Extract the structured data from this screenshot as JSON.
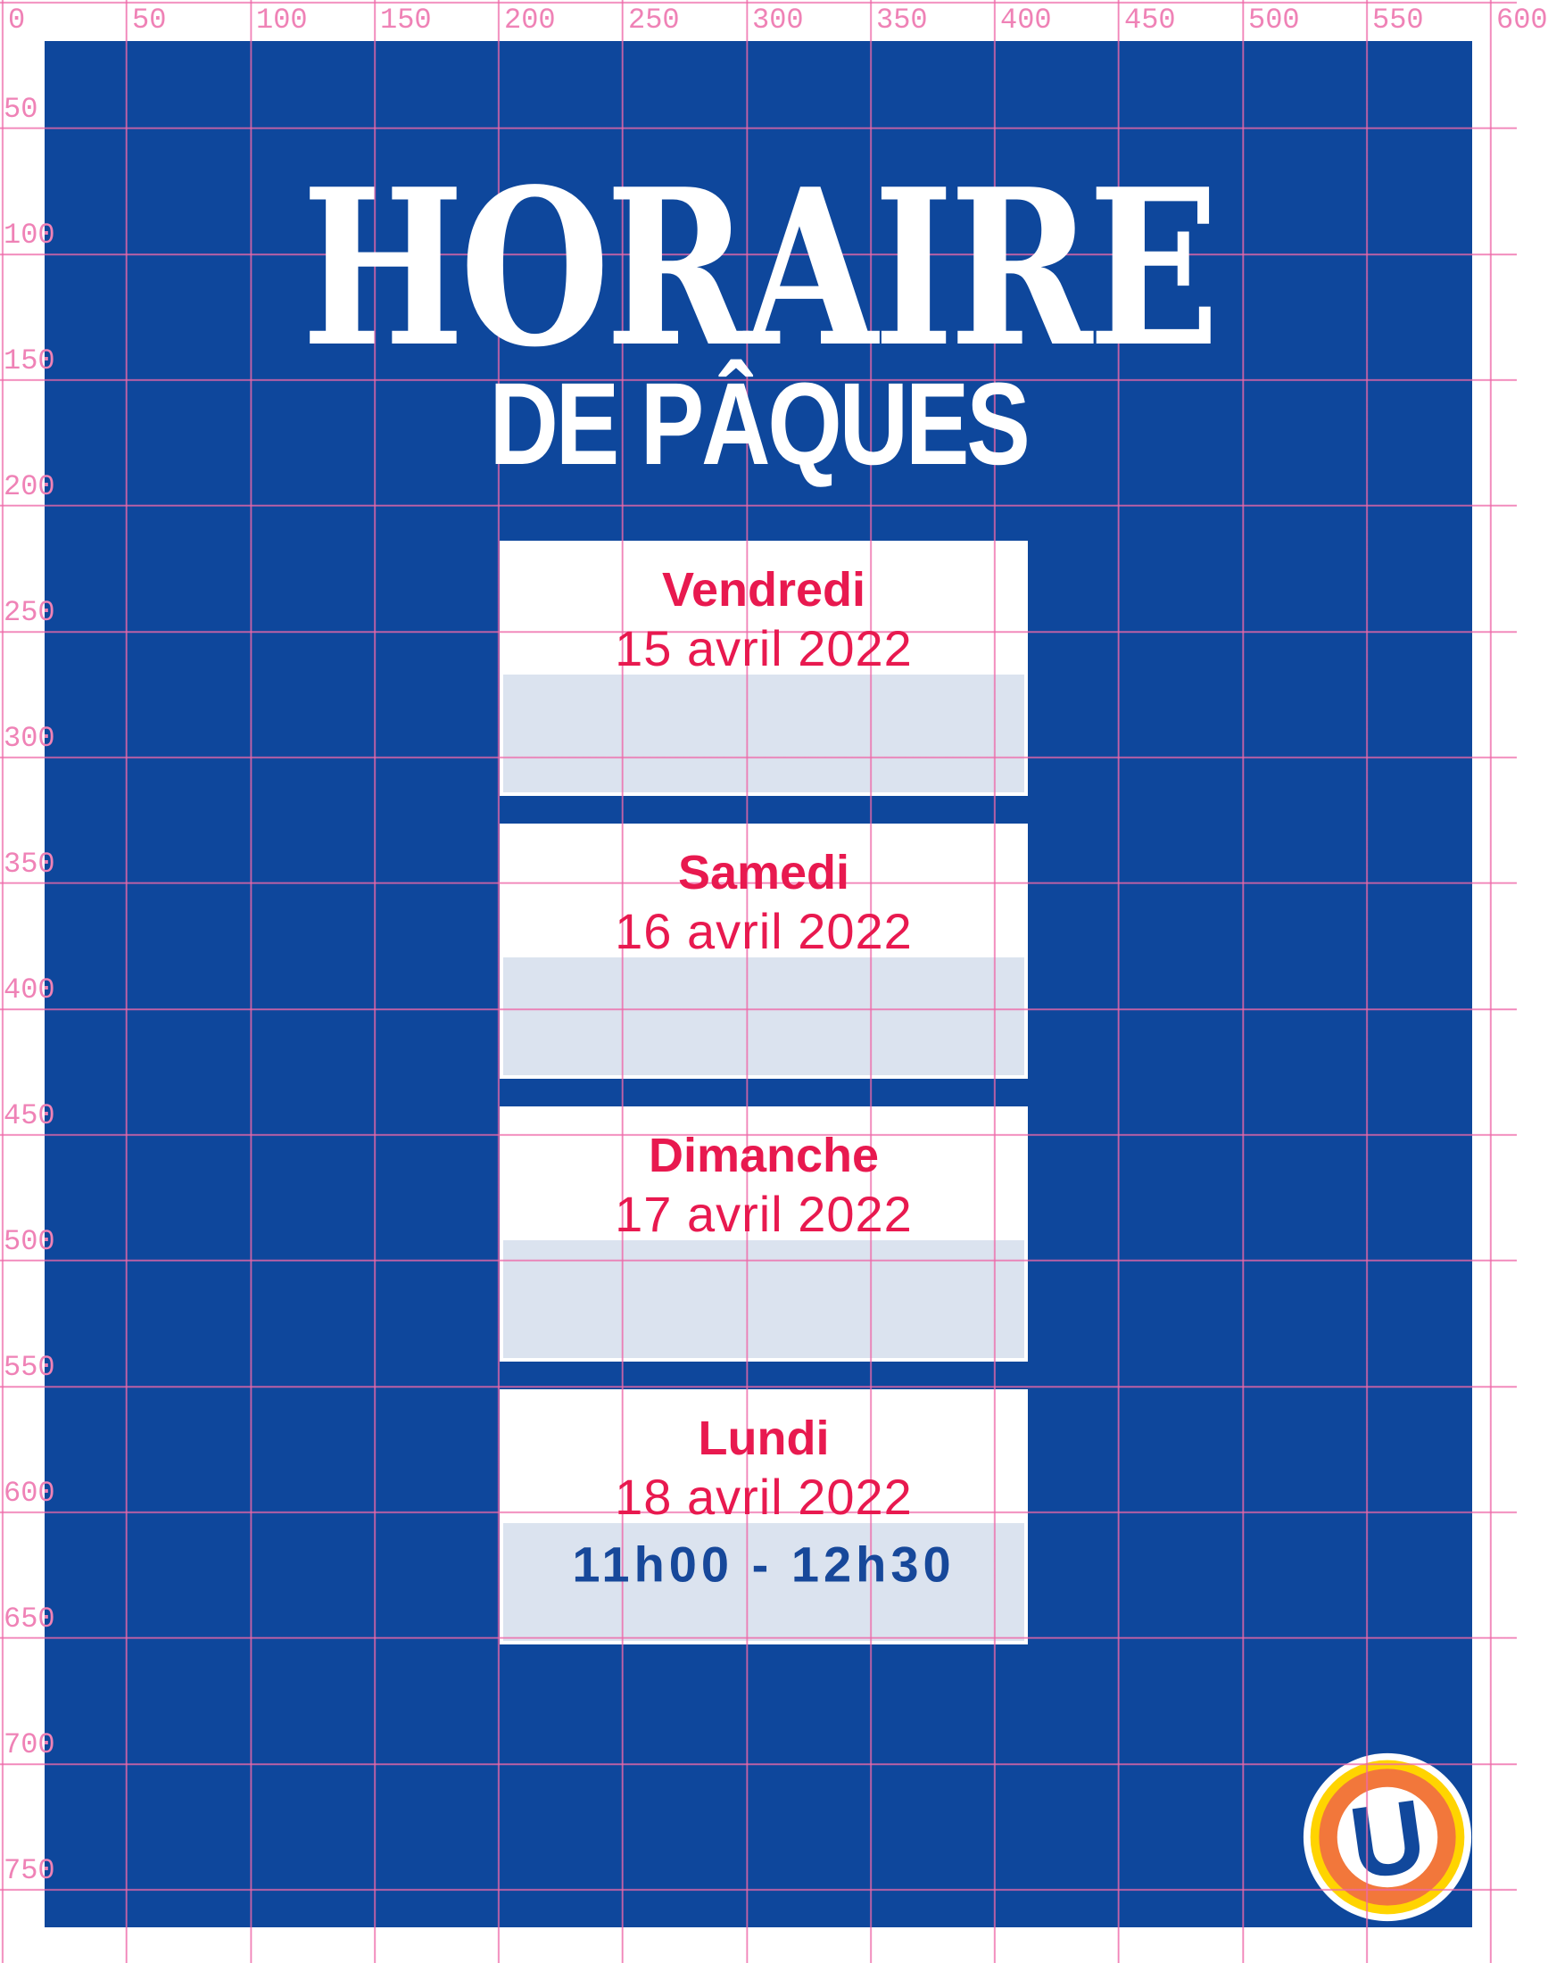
{
  "ruler": {
    "top_labels": [
      "0",
      "50",
      "100",
      "150",
      "200",
      "250",
      "300",
      "350",
      "400",
      "450",
      "500",
      "550",
      "600"
    ],
    "left_labels": [
      "50",
      "100",
      "150",
      "200",
      "250",
      "300",
      "350",
      "400",
      "450",
      "500",
      "550",
      "600",
      "650",
      "700",
      "750"
    ]
  },
  "poster": {
    "title": "HORAIRE",
    "subtitle": "DE PÂQUES"
  },
  "cards": [
    {
      "day": "Vendredi",
      "date": "15 avril 2022",
      "time": ""
    },
    {
      "day": "Samedi",
      "date": "16 avril 2022",
      "time": ""
    },
    {
      "day": "Dimanche",
      "date": "17 avril 2022",
      "time": ""
    },
    {
      "day": "Lundi",
      "date": "18 avril 2022",
      "time": "11h00 - 12h30"
    }
  ],
  "logo": {
    "letter": "U"
  },
  "colors": {
    "poster_blue": "#0e479c",
    "grid_pink": "#ee68a8",
    "ruler_label_pink": "#ef82b6",
    "accent_red": "#e8194f",
    "slot_blue_gray": "#dbe3ef",
    "time_navy": "#17489a",
    "logo_yellow": "#ffd400",
    "logo_orange": "#f2773b",
    "white": "#ffffff"
  }
}
